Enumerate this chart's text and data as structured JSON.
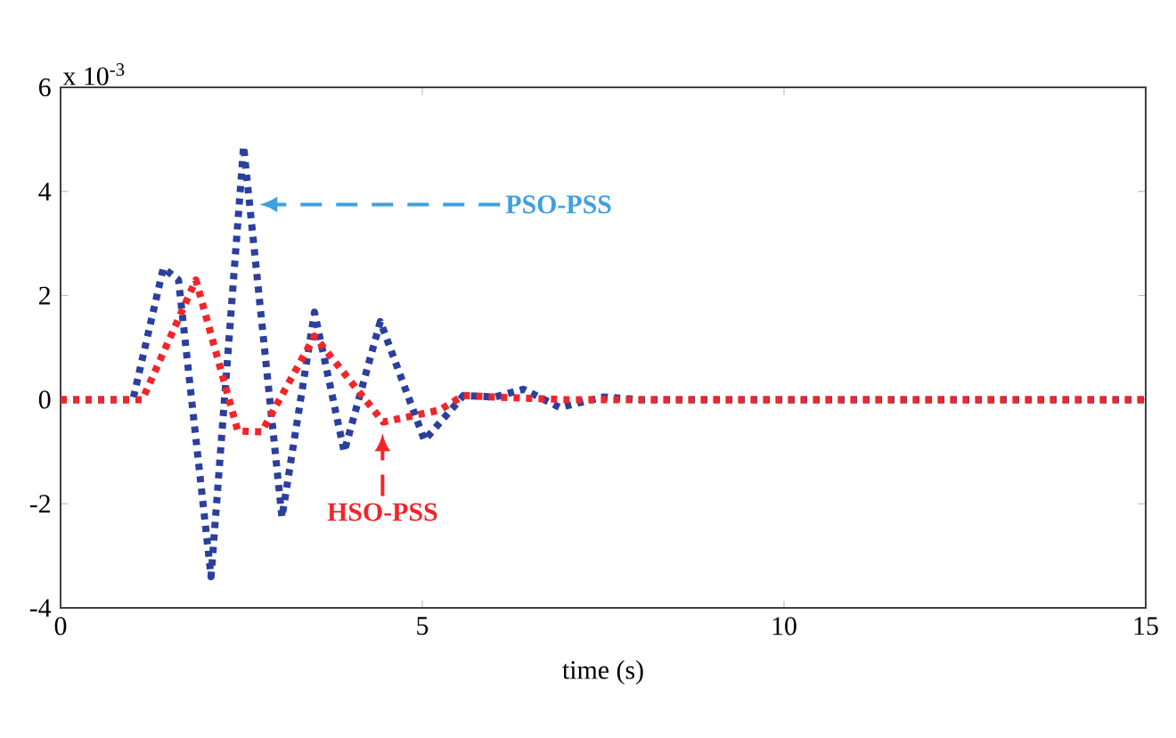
{
  "chart_data": {
    "type": "line",
    "xlabel": "time (s)",
    "xlim": [
      0,
      15
    ],
    "ylim": [
      -4,
      6
    ],
    "xticks": [
      0,
      5,
      10,
      15
    ],
    "yticks": [
      -4,
      -2,
      0,
      2,
      4,
      6
    ],
    "grid": false,
    "line_style": "dotted",
    "series": [
      {
        "color": "#2b3f9e",
        "x": [
          0,
          1.0,
          1.42,
          1.63,
          2.08,
          2.53,
          3.06,
          3.51,
          3.92,
          4.42,
          5.03,
          5.57,
          6.0,
          6.4,
          6.9,
          7.5,
          8.0,
          15
        ],
        "values": [
          0,
          0,
          2.53,
          2.3,
          -3.4,
          4.87,
          -2.26,
          1.68,
          -1.0,
          1.5,
          -0.78,
          0.08,
          0.05,
          0.2,
          -0.15,
          0.05,
          0,
          0
        ]
      },
      {
        "color": "#f0262b",
        "x": [
          0,
          1.13,
          1.87,
          2.45,
          2.78,
          3.51,
          4.46,
          5.24,
          5.57,
          6.0,
          7.0,
          15
        ],
        "values": [
          0,
          0,
          2.3,
          -0.6,
          -0.62,
          1.22,
          -0.43,
          -0.2,
          0.08,
          0.05,
          0,
          0
        ]
      }
    ],
    "annotations": [
      "x 10$^{-3}$",
      {
        "text": "PSO-PSS",
        "x": 2.75,
        "y": 3.75
      },
      "HSO-PSS"
    ]
  }
}
